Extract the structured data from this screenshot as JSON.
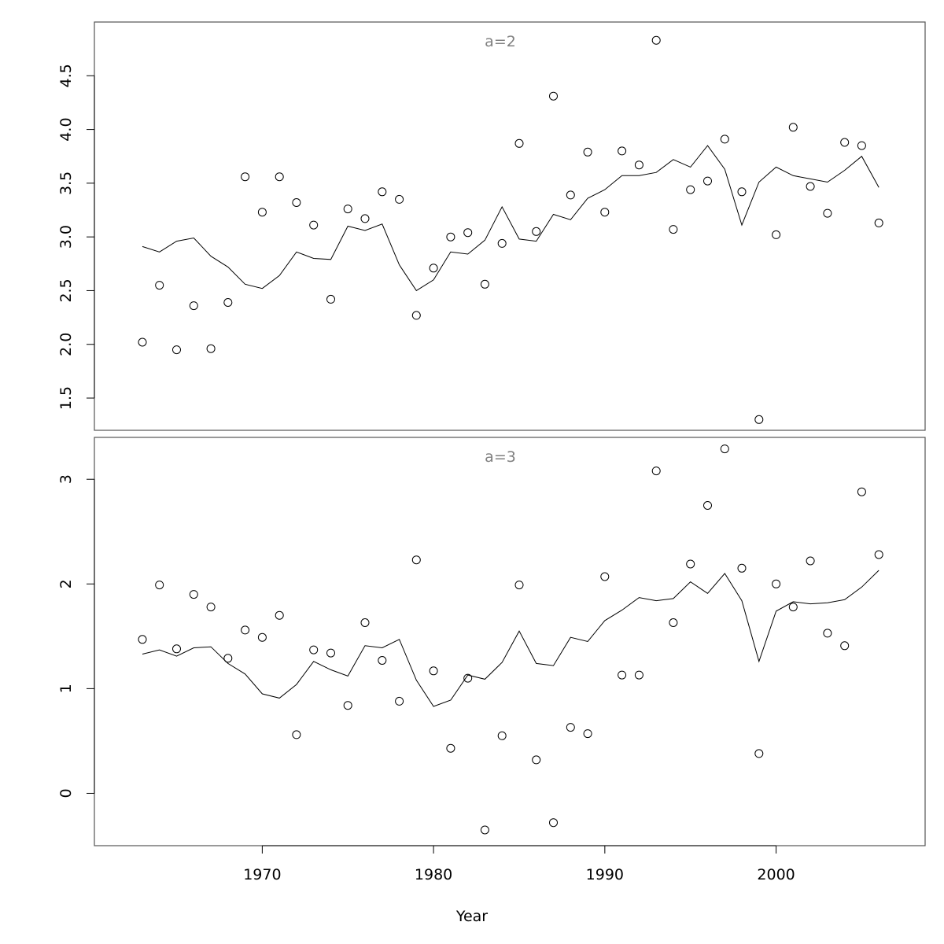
{
  "chart_data": {
    "type": "scatter",
    "xlabel": "Year",
    "xlim": [
      1960.2,
      2008.7
    ],
    "x_ticks": [
      1970,
      1980,
      1990,
      2000
    ],
    "x": [
      1963,
      1964,
      1965,
      1966,
      1967,
      1968,
      1969,
      1970,
      1971,
      1972,
      1973,
      1974,
      1975,
      1976,
      1977,
      1978,
      1979,
      1980,
      1981,
      1982,
      1983,
      1984,
      1985,
      1986,
      1987,
      1988,
      1989,
      1990,
      1991,
      1992,
      1993,
      1994,
      1995,
      1996,
      1997,
      1998,
      1999,
      2000,
      2001,
      2002,
      2003,
      2004,
      2005,
      2006
    ],
    "panels": [
      {
        "title": "a=2",
        "ylim": [
          1.2,
          5.0
        ],
        "y_ticks": [
          1.5,
          2.0,
          2.5,
          3.0,
          3.5,
          4.0,
          4.5
        ],
        "y_tick_labels": [
          "1.5",
          "2.0",
          "2.5",
          "3.0",
          "3.5",
          "4.0",
          "4.5"
        ],
        "series": [
          {
            "kind": "points",
            "values": [
              2.02,
              2.55,
              1.95,
              2.36,
              1.96,
              2.39,
              3.56,
              3.23,
              3.56,
              3.32,
              3.11,
              2.42,
              3.26,
              3.17,
              3.42,
              3.35,
              2.27,
              2.71,
              3.0,
              3.04,
              2.56,
              2.94,
              3.87,
              3.05,
              4.31,
              3.39,
              3.79,
              3.23,
              3.8,
              3.67,
              4.83,
              3.07,
              3.44,
              3.52,
              3.91,
              3.42,
              1.3,
              3.02,
              4.02,
              3.47,
              3.22,
              3.88,
              3.85,
              3.13
            ]
          },
          {
            "kind": "line",
            "values": [
              2.91,
              2.86,
              2.96,
              2.99,
              2.82,
              2.72,
              2.56,
              2.52,
              2.64,
              2.86,
              2.8,
              2.79,
              3.1,
              3.06,
              3.12,
              2.74,
              2.5,
              2.6,
              2.86,
              2.84,
              2.97,
              3.28,
              2.98,
              2.96,
              3.21,
              3.16,
              3.36,
              3.44,
              3.57,
              3.57,
              3.6,
              3.72,
              3.65,
              3.85,
              3.63,
              3.11,
              3.51,
              3.65,
              3.57,
              3.54,
              3.51,
              3.62,
              3.75,
              3.46
            ]
          }
        ]
      },
      {
        "title": "a=3",
        "ylim": [
          -0.5,
          3.4
        ],
        "y_ticks": [
          0,
          1,
          2,
          3
        ],
        "y_tick_labels": [
          "0",
          "1",
          "2",
          "3"
        ],
        "series": [
          {
            "kind": "points",
            "values": [
              1.47,
              1.99,
              1.38,
              1.9,
              1.78,
              1.29,
              1.56,
              1.49,
              1.7,
              0.56,
              1.37,
              1.34,
              0.84,
              1.63,
              1.27,
              0.88,
              2.23,
              1.17,
              0.43,
              1.1,
              -0.35,
              0.55,
              1.99,
              0.32,
              -0.28,
              0.63,
              0.57,
              2.07,
              1.13,
              1.13,
              3.08,
              1.63,
              2.19,
              2.75,
              3.29,
              2.15,
              0.38,
              2.0,
              1.78,
              2.22,
              1.53,
              1.41,
              2.88,
              2.28
            ]
          },
          {
            "kind": "line",
            "values": [
              1.33,
              1.37,
              1.31,
              1.39,
              1.4,
              1.24,
              1.14,
              0.95,
              0.91,
              1.04,
              1.26,
              1.18,
              1.12,
              1.41,
              1.39,
              1.47,
              1.08,
              0.83,
              0.89,
              1.13,
              1.09,
              1.25,
              1.55,
              1.24,
              1.22,
              1.49,
              1.45,
              1.65,
              1.75,
              1.87,
              1.84,
              1.86,
              2.02,
              1.91,
              2.1,
              1.84,
              1.26,
              1.74,
              1.83,
              1.81,
              1.82,
              1.85,
              1.97,
              2.13
            ]
          }
        ]
      }
    ],
    "colors": {
      "points": "#000000",
      "line": "#000000",
      "frame": "#555555",
      "panel_title": "#808080"
    }
  }
}
